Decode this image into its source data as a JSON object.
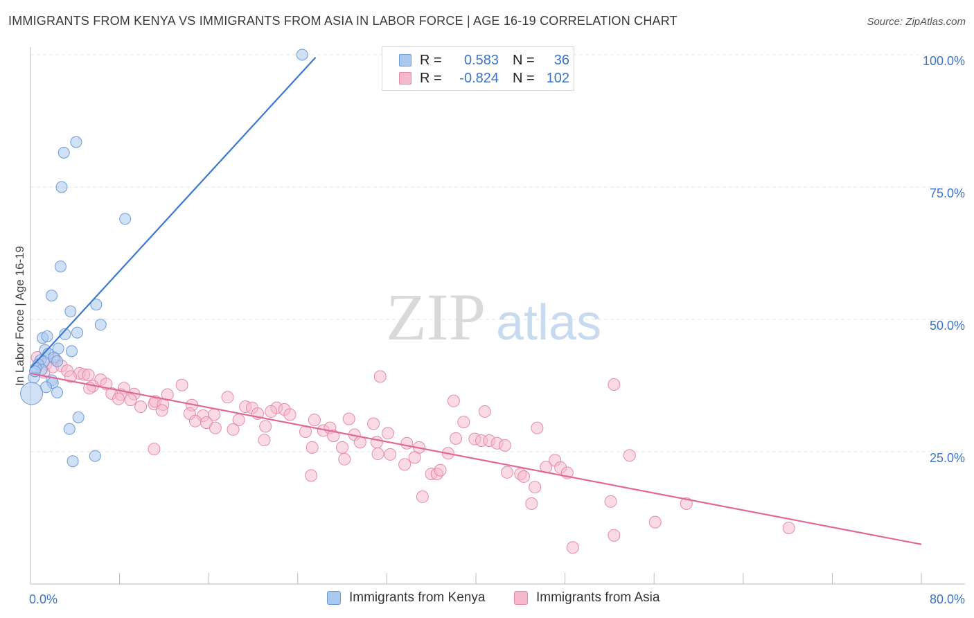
{
  "title": "IMMIGRANTS FROM KENYA VS IMMIGRANTS FROM ASIA IN LABOR FORCE | AGE 16-19 CORRELATION CHART",
  "source": "Source: ZipAtlas.com",
  "watermark": {
    "zip": "ZIP",
    "atlas": "atlas"
  },
  "legend": {
    "kenya": {
      "r_label": "R =",
      "r_value": "0.583",
      "n_label": "N =",
      "n_value": "36"
    },
    "asia": {
      "r_label": "R =",
      "r_value": "-0.824",
      "n_label": "N =",
      "n_value": "102"
    }
  },
  "bottom_legend": {
    "kenya": "Immigrants from Kenya",
    "asia": "Immigrants from Asia"
  },
  "colors": {
    "kenya_fill": "#a9c8ef",
    "kenya_stroke": "#6b9ad8",
    "kenya_line": "#3a78d0",
    "asia_fill": "#f5b8cb",
    "asia_stroke": "#e48aa8",
    "asia_line": "#e0679a",
    "tick_label": "#3a73c8"
  },
  "chart_data": {
    "type": "scatter",
    "title": "IMMIGRANTS FROM KENYA VS IMMIGRANTS FROM ASIA IN LABOR FORCE | AGE 16-19 CORRELATION CHART",
    "xlabel": "",
    "ylabel": "In Labor Force | Age 16-19",
    "xlim": [
      0,
      80
    ],
    "ylim": [
      0,
      102
    ],
    "x_tick_labels": [
      {
        "value": 0,
        "label": "0.0%"
      },
      {
        "value": 80,
        "label": "80.0%"
      }
    ],
    "y_tick_labels": [
      {
        "value": 25,
        "label": "25.0%"
      },
      {
        "value": 50,
        "label": "50.0%"
      },
      {
        "value": 75,
        "label": "75.0%"
      },
      {
        "value": 100,
        "label": "100.0%"
      }
    ],
    "grid": true,
    "legend_position": "top-center",
    "series": [
      {
        "name": "Immigrants from Kenya",
        "r": 0.583,
        "n": 36,
        "trend": {
          "x": [
            0,
            25.6
          ],
          "y": [
            40.8,
            99.5
          ]
        },
        "points": [
          {
            "x": 24.4,
            "y": 100.0
          },
          {
            "x": 4.1,
            "y": 83.5
          },
          {
            "x": 3.0,
            "y": 81.5
          },
          {
            "x": 2.8,
            "y": 75.0
          },
          {
            "x": 8.5,
            "y": 69.0
          },
          {
            "x": 2.7,
            "y": 60.0
          },
          {
            "x": 1.9,
            "y": 54.5
          },
          {
            "x": 5.9,
            "y": 52.8
          },
          {
            "x": 3.6,
            "y": 51.5
          },
          {
            "x": 6.3,
            "y": 49.0
          },
          {
            "x": 3.1,
            "y": 47.2
          },
          {
            "x": 4.2,
            "y": 47.5
          },
          {
            "x": 1.1,
            "y": 46.5
          },
          {
            "x": 1.5,
            "y": 46.8
          },
          {
            "x": 1.3,
            "y": 44.2
          },
          {
            "x": 3.7,
            "y": 44.0
          },
          {
            "x": 2.5,
            "y": 44.5
          },
          {
            "x": 1.6,
            "y": 43.5
          },
          {
            "x": 2.1,
            "y": 42.8
          },
          {
            "x": 0.9,
            "y": 42.3
          },
          {
            "x": 1.2,
            "y": 42.0
          },
          {
            "x": 2.4,
            "y": 42.1
          },
          {
            "x": 0.7,
            "y": 41.5
          },
          {
            "x": 1.0,
            "y": 40.5
          },
          {
            "x": 0.5,
            "y": 40.8
          },
          {
            "x": 0.3,
            "y": 39.0
          },
          {
            "x": 1.9,
            "y": 38.5
          },
          {
            "x": 2.0,
            "y": 38.0
          },
          {
            "x": 1.4,
            "y": 37.2
          },
          {
            "x": 2.4,
            "y": 36.2
          },
          {
            "x": 0.1,
            "y": 36.0,
            "size": "large"
          },
          {
            "x": 4.3,
            "y": 31.5
          },
          {
            "x": 3.5,
            "y": 29.3
          },
          {
            "x": 5.8,
            "y": 24.2
          },
          {
            "x": 3.8,
            "y": 23.2
          },
          {
            "x": 0.4,
            "y": 40.2
          }
        ]
      },
      {
        "name": "Immigrants from Asia",
        "r": -0.824,
        "n": 102,
        "trend": {
          "x": [
            0,
            80
          ],
          "y": [
            39.8,
            7.5
          ]
        },
        "points": [
          {
            "x": 0.6,
            "y": 42.8
          },
          {
            "x": 1.4,
            "y": 41.6
          },
          {
            "x": 2.2,
            "y": 42.5
          },
          {
            "x": 2.0,
            "y": 41.0
          },
          {
            "x": 2.8,
            "y": 41.2
          },
          {
            "x": 3.3,
            "y": 40.3
          },
          {
            "x": 1.2,
            "y": 40.0
          },
          {
            "x": 4.4,
            "y": 39.8
          },
          {
            "x": 4.8,
            "y": 39.6
          },
          {
            "x": 5.2,
            "y": 39.5
          },
          {
            "x": 3.6,
            "y": 39.2
          },
          {
            "x": 6.3,
            "y": 38.6
          },
          {
            "x": 5.6,
            "y": 37.4
          },
          {
            "x": 5.3,
            "y": 37.0
          },
          {
            "x": 6.8,
            "y": 37.8
          },
          {
            "x": 8.4,
            "y": 37.0
          },
          {
            "x": 7.3,
            "y": 36.0
          },
          {
            "x": 8.1,
            "y": 35.8
          },
          {
            "x": 9.3,
            "y": 35.9
          },
          {
            "x": 7.9,
            "y": 35.0
          },
          {
            "x": 9.0,
            "y": 34.8
          },
          {
            "x": 11.1,
            "y": 34.0
          },
          {
            "x": 11.2,
            "y": 34.5
          },
          {
            "x": 12.3,
            "y": 35.8
          },
          {
            "x": 13.6,
            "y": 37.6
          },
          {
            "x": 11.9,
            "y": 33.9
          },
          {
            "x": 14.5,
            "y": 33.8
          },
          {
            "x": 9.9,
            "y": 33.5
          },
          {
            "x": 11.8,
            "y": 32.8
          },
          {
            "x": 14.3,
            "y": 32.2
          },
          {
            "x": 17.7,
            "y": 35.3
          },
          {
            "x": 19.3,
            "y": 33.5
          },
          {
            "x": 19.9,
            "y": 33.3
          },
          {
            "x": 22.1,
            "y": 33.3
          },
          {
            "x": 22.8,
            "y": 33.0
          },
          {
            "x": 21.6,
            "y": 32.6
          },
          {
            "x": 16.5,
            "y": 32.0
          },
          {
            "x": 20.4,
            "y": 32.2
          },
          {
            "x": 23.3,
            "y": 32.0
          },
          {
            "x": 15.5,
            "y": 31.8
          },
          {
            "x": 14.8,
            "y": 30.8
          },
          {
            "x": 15.8,
            "y": 30.5
          },
          {
            "x": 18.7,
            "y": 31.0
          },
          {
            "x": 25.5,
            "y": 31.0
          },
          {
            "x": 28.6,
            "y": 31.2
          },
          {
            "x": 16.6,
            "y": 29.5
          },
          {
            "x": 18.2,
            "y": 29.2
          },
          {
            "x": 21.1,
            "y": 29.8
          },
          {
            "x": 24.7,
            "y": 28.8
          },
          {
            "x": 26.3,
            "y": 29.0
          },
          {
            "x": 26.9,
            "y": 29.5
          },
          {
            "x": 30.8,
            "y": 30.3
          },
          {
            "x": 27.2,
            "y": 28.0
          },
          {
            "x": 29.1,
            "y": 28.2
          },
          {
            "x": 32.1,
            "y": 28.5
          },
          {
            "x": 21.0,
            "y": 27.2
          },
          {
            "x": 29.6,
            "y": 26.8
          },
          {
            "x": 31.1,
            "y": 26.8
          },
          {
            "x": 33.8,
            "y": 26.6
          },
          {
            "x": 25.3,
            "y": 25.8
          },
          {
            "x": 28.0,
            "y": 25.8
          },
          {
            "x": 34.9,
            "y": 25.8
          },
          {
            "x": 11.1,
            "y": 25.5
          },
          {
            "x": 31.2,
            "y": 24.6
          },
          {
            "x": 32.3,
            "y": 24.5
          },
          {
            "x": 34.5,
            "y": 23.9
          },
          {
            "x": 28.2,
            "y": 23.6
          },
          {
            "x": 33.6,
            "y": 22.6
          },
          {
            "x": 37.5,
            "y": 24.7
          },
          {
            "x": 38.2,
            "y": 27.5
          },
          {
            "x": 39.9,
            "y": 27.4
          },
          {
            "x": 40.5,
            "y": 27.1
          },
          {
            "x": 41.2,
            "y": 27.1
          },
          {
            "x": 41.9,
            "y": 26.6
          },
          {
            "x": 42.6,
            "y": 26.2
          },
          {
            "x": 38.0,
            "y": 34.6
          },
          {
            "x": 38.9,
            "y": 30.6
          },
          {
            "x": 40.8,
            "y": 32.6
          },
          {
            "x": 31.4,
            "y": 39.2
          },
          {
            "x": 36.0,
            "y": 20.8
          },
          {
            "x": 36.5,
            "y": 20.8
          },
          {
            "x": 36.8,
            "y": 21.5
          },
          {
            "x": 25.2,
            "y": 20.5
          },
          {
            "x": 35.2,
            "y": 16.5
          },
          {
            "x": 42.8,
            "y": 21.1
          },
          {
            "x": 44.0,
            "y": 20.8
          },
          {
            "x": 44.3,
            "y": 20.3
          },
          {
            "x": 45.3,
            "y": 18.3
          },
          {
            "x": 46.3,
            "y": 22.1
          },
          {
            "x": 47.1,
            "y": 23.4
          },
          {
            "x": 47.6,
            "y": 22.0
          },
          {
            "x": 48.2,
            "y": 21.0
          },
          {
            "x": 45.5,
            "y": 29.5
          },
          {
            "x": 52.4,
            "y": 37.7
          },
          {
            "x": 53.8,
            "y": 24.3
          },
          {
            "x": 52.1,
            "y": 15.6
          },
          {
            "x": 45.0,
            "y": 15.2
          },
          {
            "x": 56.1,
            "y": 11.7
          },
          {
            "x": 52.4,
            "y": 9.2
          },
          {
            "x": 48.7,
            "y": 6.9
          },
          {
            "x": 58.9,
            "y": 15.2
          },
          {
            "x": 68.1,
            "y": 10.6
          }
        ]
      }
    ]
  }
}
